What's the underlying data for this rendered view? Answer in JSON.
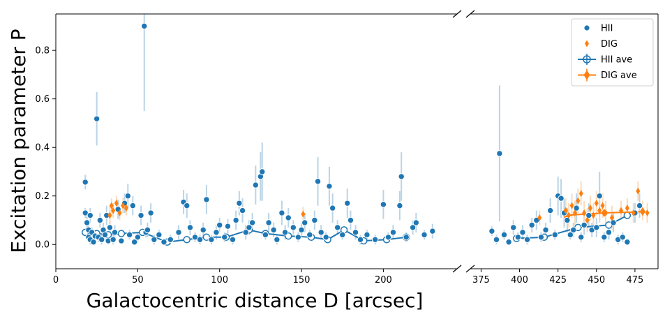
{
  "chart_data": {
    "type": "scatter",
    "xlabel": "Galactocentric distance D [arcsec]",
    "ylabel": "Excitation parameter P",
    "broken_x_axis": true,
    "panels": [
      {
        "xlim": [
          0,
          245
        ],
        "xticks": [
          0,
          50,
          100,
          150,
          200
        ]
      },
      {
        "xlim": [
          368,
          490
        ],
        "xticks": [
          375,
          400,
          425,
          450,
          475
        ]
      }
    ],
    "ylim": [
      -0.1,
      0.95
    ],
    "yticks": [
      0.0,
      0.2,
      0.4,
      0.6,
      0.8
    ],
    "ytick_labels": [
      "0.0",
      "0.2",
      "0.4",
      "0.6",
      "0.8"
    ],
    "legend": {
      "position": "top-right",
      "entries": [
        "HII",
        "DIG",
        "HII ave",
        "DIG ave"
      ]
    },
    "colors": {
      "hii": "#1f77b4",
      "dig": "#ff7f0e",
      "hii_err": "#aecde2",
      "dig_err": "#fcd4b0"
    },
    "series": [
      {
        "name": "HII",
        "marker": "circle",
        "points": [
          [
            18,
            0.13,
            0.02
          ],
          [
            18,
            0.257,
            0.03
          ],
          [
            19,
            0.09,
            0.03
          ],
          [
            20,
            0.03,
            0.02
          ],
          [
            20,
            0.06,
            0.03
          ],
          [
            21,
            0.02,
            0.02
          ],
          [
            21,
            0.12,
            0.03
          ],
          [
            22,
            0.05,
            0.02
          ],
          [
            23,
            0.01,
            0.01
          ],
          [
            24,
            0.035,
            0.02
          ],
          [
            25,
            0.518,
            0.11
          ],
          [
            26,
            0.03,
            0.02
          ],
          [
            27,
            0.1,
            0.03
          ],
          [
            28,
            0.02,
            0.02
          ],
          [
            29,
            0.06,
            0.03
          ],
          [
            30,
            0.04,
            0.02
          ],
          [
            31,
            0.12,
            0.04
          ],
          [
            32,
            0.015,
            0.01
          ],
          [
            33,
            0.07,
            0.03
          ],
          [
            35,
            0.02,
            0.02
          ],
          [
            36,
            0.05,
            0.03
          ],
          [
            38,
            0.145,
            0.04
          ],
          [
            40,
            0.015,
            0.01
          ],
          [
            42,
            0.17,
            0.04
          ],
          [
            44,
            0.2,
            0.05
          ],
          [
            45,
            0.04,
            0.02
          ],
          [
            47,
            0.16,
            0.04
          ],
          [
            48,
            0.01,
            0.01
          ],
          [
            50,
            0.03,
            0.02
          ],
          [
            52,
            0.12,
            0.04
          ],
          [
            54,
            0.9,
            0.35
          ],
          [
            55,
            0.05,
            0.02
          ],
          [
            56,
            0.06,
            0.03
          ],
          [
            58,
            0.13,
            0.04
          ],
          [
            60,
            0.02,
            0.02
          ],
          [
            63,
            0.04,
            0.02
          ],
          [
            66,
            0.01,
            0.01
          ],
          [
            70,
            0.02,
            0.02
          ],
          [
            75,
            0.05,
            0.03
          ],
          [
            78,
            0.175,
            0.05
          ],
          [
            80,
            0.16,
            0.05
          ],
          [
            82,
            0.07,
            0.03
          ],
          [
            85,
            0.03,
            0.02
          ],
          [
            88,
            0.02,
            0.02
          ],
          [
            90,
            0.06,
            0.03
          ],
          [
            92,
            0.185,
            0.06
          ],
          [
            95,
            0.02,
            0.02
          ],
          [
            98,
            0.05,
            0.03
          ],
          [
            100,
            0.08,
            0.03
          ],
          [
            103,
            0.03,
            0.02
          ],
          [
            105,
            0.075,
            0.03
          ],
          [
            108,
            0.02,
            0.02
          ],
          [
            110,
            0.1,
            0.04
          ],
          [
            112,
            0.17,
            0.05
          ],
          [
            114,
            0.14,
            0.05
          ],
          [
            116,
            0.05,
            0.03
          ],
          [
            118,
            0.07,
            0.03
          ],
          [
            120,
            0.09,
            0.04
          ],
          [
            122,
            0.245,
            0.08
          ],
          [
            125,
            0.28,
            0.1
          ],
          [
            126,
            0.3,
            0.12
          ],
          [
            128,
            0.04,
            0.02
          ],
          [
            130,
            0.09,
            0.04
          ],
          [
            133,
            0.06,
            0.03
          ],
          [
            135,
            0.02,
            0.02
          ],
          [
            138,
            0.13,
            0.05
          ],
          [
            140,
            0.05,
            0.03
          ],
          [
            142,
            0.11,
            0.04
          ],
          [
            145,
            0.07,
            0.03
          ],
          [
            148,
            0.03,
            0.02
          ],
          [
            150,
            0.06,
            0.03
          ],
          [
            152,
            0.09,
            0.04
          ],
          [
            155,
            0.04,
            0.02
          ],
          [
            158,
            0.1,
            0.04
          ],
          [
            160,
            0.26,
            0.1
          ],
          [
            162,
            0.05,
            0.03
          ],
          [
            165,
            0.03,
            0.02
          ],
          [
            167,
            0.24,
            0.08
          ],
          [
            169,
            0.15,
            0.06
          ],
          [
            172,
            0.07,
            0.03
          ],
          [
            175,
            0.04,
            0.02
          ],
          [
            178,
            0.17,
            0.06
          ],
          [
            180,
            0.1,
            0.04
          ],
          [
            183,
            0.05,
            0.03
          ],
          [
            186,
            0.02,
            0.02
          ],
          [
            190,
            0.04,
            0.02
          ],
          [
            195,
            0.02,
            0.02
          ],
          [
            200,
            0.165,
            0.06
          ],
          [
            203,
            0.03,
            0.02
          ],
          [
            206,
            0.05,
            0.03
          ],
          [
            210,
            0.16,
            0.06
          ],
          [
            211,
            0.28,
            0.1
          ],
          [
            214,
            0.03,
            0.02
          ],
          [
            218,
            0.07,
            0.03
          ],
          [
            220,
            0.09,
            0.04
          ],
          [
            225,
            0.04,
            0.02
          ],
          [
            230,
            0.055,
            0.03
          ],
          [
            382,
            0.055,
            0.02
          ],
          [
            385,
            0.02,
            0.02
          ],
          [
            387,
            0.375,
            0.28
          ],
          [
            390,
            0.04,
            0.02
          ],
          [
            393,
            0.01,
            0.01
          ],
          [
            396,
            0.07,
            0.03
          ],
          [
            399,
            0.03,
            0.02
          ],
          [
            402,
            0.05,
            0.03
          ],
          [
            405,
            0.02,
            0.02
          ],
          [
            408,
            0.08,
            0.03
          ],
          [
            411,
            0.1,
            0.04
          ],
          [
            414,
            0.03,
            0.02
          ],
          [
            417,
            0.06,
            0.03
          ],
          [
            420,
            0.14,
            0.05
          ],
          [
            423,
            0.04,
            0.02
          ],
          [
            425,
            0.2,
            0.08
          ],
          [
            427,
            0.19,
            0.08
          ],
          [
            429,
            0.13,
            0.06
          ],
          [
            431,
            0.1,
            0.05
          ],
          [
            433,
            0.04,
            0.02
          ],
          [
            435,
            0.06,
            0.03
          ],
          [
            437,
            0.15,
            0.06
          ],
          [
            440,
            0.03,
            0.02
          ],
          [
            442,
            0.08,
            0.04
          ],
          [
            445,
            0.12,
            0.05
          ],
          [
            447,
            0.06,
            0.03
          ],
          [
            450,
            0.07,
            0.04
          ],
          [
            452,
            0.2,
            0.1
          ],
          [
            455,
            0.03,
            0.02
          ],
          [
            458,
            0.05,
            0.03
          ],
          [
            461,
            0.09,
            0.04
          ],
          [
            464,
            0.02,
            0.02
          ],
          [
            467,
            0.03,
            0.02
          ],
          [
            470,
            0.01,
            0.01
          ],
          [
            475,
            0.13,
            0.04
          ],
          [
            478,
            0.16,
            0.05
          ]
        ]
      },
      {
        "name": "DIG",
        "marker": "diamond",
        "points": [
          [
            33,
            0.12,
            0.04
          ],
          [
            34,
            0.16,
            0.03
          ],
          [
            35,
            0.14,
            0.03
          ],
          [
            37,
            0.17,
            0.03
          ],
          [
            39,
            0.13,
            0.03
          ],
          [
            41,
            0.16,
            0.03
          ],
          [
            43,
            0.15,
            0.03
          ],
          [
            151,
            0.125,
            0.03
          ],
          [
            413,
            0.11,
            0.03
          ],
          [
            430,
            0.14,
            0.05
          ],
          [
            432,
            0.12,
            0.05
          ],
          [
            434,
            0.16,
            0.05
          ],
          [
            436,
            0.13,
            0.05
          ],
          [
            438,
            0.18,
            0.05
          ],
          [
            440,
            0.21,
            0.05
          ],
          [
            442,
            0.13,
            0.05
          ],
          [
            444,
            0.1,
            0.05
          ],
          [
            446,
            0.15,
            0.05
          ],
          [
            448,
            0.12,
            0.05
          ],
          [
            450,
            0.17,
            0.05
          ],
          [
            452,
            0.14,
            0.05
          ],
          [
            454,
            0.16,
            0.05
          ],
          [
            456,
            0.13,
            0.05
          ],
          [
            460,
            0.11,
            0.05
          ],
          [
            466,
            0.14,
            0.04
          ],
          [
            470,
            0.15,
            0.04
          ],
          [
            474,
            0.13,
            0.04
          ],
          [
            477,
            0.22,
            0.04
          ],
          [
            480,
            0.14,
            0.04
          ],
          [
            483,
            0.13,
            0.04
          ]
        ]
      },
      {
        "name": "HII ave",
        "marker": "open-circle-line",
        "points": [
          [
            18,
            0.05
          ],
          [
            25,
            0.045
          ],
          [
            32,
            0.04
          ],
          [
            40,
            0.045
          ],
          [
            53,
            0.05
          ],
          [
            68,
            0.01
          ],
          [
            80,
            0.02
          ],
          [
            92,
            0.03
          ],
          [
            104,
            0.03
          ],
          [
            118,
            0.06
          ],
          [
            128,
            0.045
          ],
          [
            142,
            0.035
          ],
          [
            156,
            0.03
          ],
          [
            166,
            0.02
          ],
          [
            176,
            0.06
          ],
          [
            188,
            0.015
          ],
          [
            202,
            0.02
          ],
          [
            214,
            0.03
          ],
          [
            398,
            0.025
          ],
          [
            416,
            0.03
          ],
          [
            438,
            0.07
          ],
          [
            458,
            0.08
          ],
          [
            470,
            0.12
          ]
        ]
      },
      {
        "name": "DIG ave",
        "marker": "filled-diamond-line",
        "points": [
          [
            430,
            0.12
          ],
          [
            455,
            0.13
          ],
          [
            480,
            0.135
          ]
        ]
      }
    ]
  }
}
